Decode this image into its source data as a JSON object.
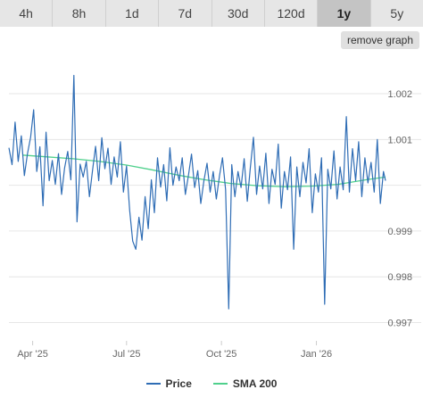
{
  "tabs": [
    {
      "label": "4h",
      "active": false
    },
    {
      "label": "8h",
      "active": false
    },
    {
      "label": "1d",
      "active": false
    },
    {
      "label": "7d",
      "active": false
    },
    {
      "label": "30d",
      "active": false
    },
    {
      "label": "120d",
      "active": false
    },
    {
      "label": "1y",
      "active": true
    },
    {
      "label": "5y",
      "active": false
    }
  ],
  "remove_graph_label": "remove graph",
  "colors": {
    "price": "#2f6db5",
    "sma": "#4fd08c",
    "grid": "#e6e6e6",
    "axis_text": "#666666"
  },
  "chart_data": {
    "type": "line",
    "x_ticks": [
      {
        "label": "Apr '25",
        "date": "2025-04-01"
      },
      {
        "label": "Jul '25",
        "date": "2025-07-01"
      },
      {
        "label": "Oct '25",
        "date": "2025-10-01"
      },
      {
        "label": "Jan '26",
        "date": "2026-01-01"
      }
    ],
    "y_ticks": [
      0.997,
      0.998,
      0.999,
      1.001,
      1.002
    ],
    "y_tick_labels": [
      "0.997",
      "0.998",
      "0.999",
      "1.001",
      "1.002"
    ],
    "ylim": [
      0.9966,
      1.0028
    ],
    "xlim": [
      "2025-03-09",
      "2026-03-09"
    ],
    "grid": true,
    "legend_position": "bottom-center",
    "series": [
      {
        "name": "Price",
        "color": "#2f6db5",
        "points": [
          [
            "2025-03-09",
            1.00082
          ],
          [
            "2025-03-12",
            1.00045
          ],
          [
            "2025-03-15",
            1.00138
          ],
          [
            "2025-03-18",
            1.00052
          ],
          [
            "2025-03-21",
            1.00108
          ],
          [
            "2025-03-24",
            1.00021
          ],
          [
            "2025-03-27",
            1.00069
          ],
          [
            "2025-03-30",
            1.00105
          ],
          [
            "2025-04-02",
            1.00165
          ],
          [
            "2025-04-05",
            1.0003
          ],
          [
            "2025-04-08",
            1.00084
          ],
          [
            "2025-04-11",
            0.99955
          ],
          [
            "2025-04-14",
            1.00116
          ],
          [
            "2025-04-17",
            1.0001
          ],
          [
            "2025-04-20",
            1.00054
          ],
          [
            "2025-04-23",
            1.00002
          ],
          [
            "2025-04-26",
            1.00069
          ],
          [
            "2025-04-29",
            0.9998
          ],
          [
            "2025-05-02",
            1.00038
          ],
          [
            "2025-05-05",
            1.00074
          ],
          [
            "2025-05-08",
            1.00012
          ],
          [
            "2025-05-11",
            1.0024
          ],
          [
            "2025-05-14",
            0.9992
          ],
          [
            "2025-05-17",
            1.00046
          ],
          [
            "2025-05-20",
            1.00018
          ],
          [
            "2025-05-23",
            1.00052
          ],
          [
            "2025-05-26",
            0.99975
          ],
          [
            "2025-05-29",
            1.00031
          ],
          [
            "2025-06-01",
            1.00085
          ],
          [
            "2025-06-04",
            1.0001
          ],
          [
            "2025-06-07",
            1.00104
          ],
          [
            "2025-06-10",
            1.00036
          ],
          [
            "2025-06-13",
            1.00081
          ],
          [
            "2025-06-16",
            1.00002
          ],
          [
            "2025-06-19",
            1.00062
          ],
          [
            "2025-06-22",
            1.00018
          ],
          [
            "2025-06-25",
            1.00095
          ],
          [
            "2025-06-28",
            0.99985
          ],
          [
            "2025-07-01",
            1.00042
          ],
          [
            "2025-07-04",
            0.99945
          ],
          [
            "2025-07-07",
            0.99878
          ],
          [
            "2025-07-10",
            0.9986
          ],
          [
            "2025-07-13",
            0.9993
          ],
          [
            "2025-07-16",
            0.9988
          ],
          [
            "2025-07-19",
            0.99975
          ],
          [
            "2025-07-22",
            0.99905
          ],
          [
            "2025-07-25",
            1.00012
          ],
          [
            "2025-07-28",
            0.9994
          ],
          [
            "2025-07-31",
            1.0006
          ],
          [
            "2025-08-03",
            0.99996
          ],
          [
            "2025-08-06",
            1.00045
          ],
          [
            "2025-08-09",
            0.99966
          ],
          [
            "2025-08-12",
            1.00082
          ],
          [
            "2025-08-15",
            1.0
          ],
          [
            "2025-08-18",
            1.0004
          ],
          [
            "2025-08-21",
            1.0001
          ],
          [
            "2025-08-24",
            1.0006
          ],
          [
            "2025-08-27",
            0.9998
          ],
          [
            "2025-08-30",
            1.00022
          ],
          [
            "2025-09-02",
            1.00068
          ],
          [
            "2025-09-05",
            0.99995
          ],
          [
            "2025-09-08",
            1.00032
          ],
          [
            "2025-09-11",
            0.9996
          ],
          [
            "2025-09-14",
            1.0001
          ],
          [
            "2025-09-17",
            1.00048
          ],
          [
            "2025-09-20",
            0.99985
          ],
          [
            "2025-09-23",
            1.0003
          ],
          [
            "2025-09-26",
            0.9997
          ],
          [
            "2025-09-29",
            1.0002
          ],
          [
            "2025-10-02",
            1.0006
          ],
          [
            "2025-10-05",
            0.9999
          ],
          [
            "2025-10-08",
            0.9973
          ],
          [
            "2025-10-11",
            1.00045
          ],
          [
            "2025-10-14",
            0.99975
          ],
          [
            "2025-10-17",
            1.0003
          ],
          [
            "2025-10-20",
            0.99995
          ],
          [
            "2025-10-23",
            1.00058
          ],
          [
            "2025-10-26",
            0.99965
          ],
          [
            "2025-10-29",
            1.00038
          ],
          [
            "2025-11-01",
            1.00105
          ],
          [
            "2025-11-04",
            0.9998
          ],
          [
            "2025-11-07",
            1.00042
          ],
          [
            "2025-11-10",
            0.99992
          ],
          [
            "2025-11-13",
            1.0007
          ],
          [
            "2025-11-16",
            0.9996
          ],
          [
            "2025-11-19",
            1.00035
          ],
          [
            "2025-11-22",
            1.00002
          ],
          [
            "2025-11-25",
            1.0009
          ],
          [
            "2025-11-28",
            0.9995
          ],
          [
            "2025-12-01",
            1.0003
          ],
          [
            "2025-12-04",
            0.9999
          ],
          [
            "2025-12-07",
            1.00062
          ],
          [
            "2025-12-10",
            0.9986
          ],
          [
            "2025-12-13",
            1.0004
          ],
          [
            "2025-12-16",
            0.99975
          ],
          [
            "2025-12-19",
            1.0005
          ],
          [
            "2025-12-22",
            1.00005
          ],
          [
            "2025-12-25",
            1.0008
          ],
          [
            "2025-12-28",
            0.9994
          ],
          [
            "2025-12-31",
            1.00025
          ],
          [
            "2026-01-03",
            0.99985
          ],
          [
            "2026-01-06",
            1.0006
          ],
          [
            "2026-01-09",
            0.9974
          ],
          [
            "2026-01-12",
            1.00035
          ],
          [
            "2026-01-15",
            0.99992
          ],
          [
            "2026-01-18",
            1.00075
          ],
          [
            "2026-01-21",
            0.9997
          ],
          [
            "2026-01-24",
            1.0004
          ],
          [
            "2026-01-27",
            0.9999
          ],
          [
            "2026-01-30",
            1.0015
          ],
          [
            "2026-02-02",
            0.99985
          ],
          [
            "2026-02-05",
            1.0008
          ],
          [
            "2026-02-08",
            1.0001
          ],
          [
            "2026-02-11",
            1.00095
          ],
          [
            "2026-02-14",
            0.99975
          ],
          [
            "2026-02-17",
            1.0006
          ],
          [
            "2026-02-20",
            1.00005
          ],
          [
            "2026-02-23",
            1.0005
          ],
          [
            "2026-02-26",
            0.99985
          ],
          [
            "2026-03-01",
            1.001
          ],
          [
            "2026-03-04",
            0.9996
          ],
          [
            "2026-03-07",
            1.0003
          ],
          [
            "2026-03-09",
            1.0001
          ]
        ]
      },
      {
        "name": "SMA 200",
        "color": "#4fd08c",
        "points": [
          [
            "2025-03-22",
            1.00066
          ],
          [
            "2025-04-15",
            1.00062
          ],
          [
            "2025-05-10",
            1.00058
          ],
          [
            "2025-06-05",
            1.00052
          ],
          [
            "2025-07-01",
            1.00044
          ],
          [
            "2025-07-25",
            1.00034
          ],
          [
            "2025-08-20",
            1.00022
          ],
          [
            "2025-09-15",
            1.00012
          ],
          [
            "2025-10-10",
            1.00004
          ],
          [
            "2025-11-05",
            0.99999
          ],
          [
            "2025-12-01",
            0.99997
          ],
          [
            "2025-12-27",
            0.99998
          ],
          [
            "2026-01-22",
            1.00002
          ],
          [
            "2026-02-18",
            1.00012
          ],
          [
            "2026-03-09",
            1.00018
          ]
        ]
      }
    ]
  }
}
